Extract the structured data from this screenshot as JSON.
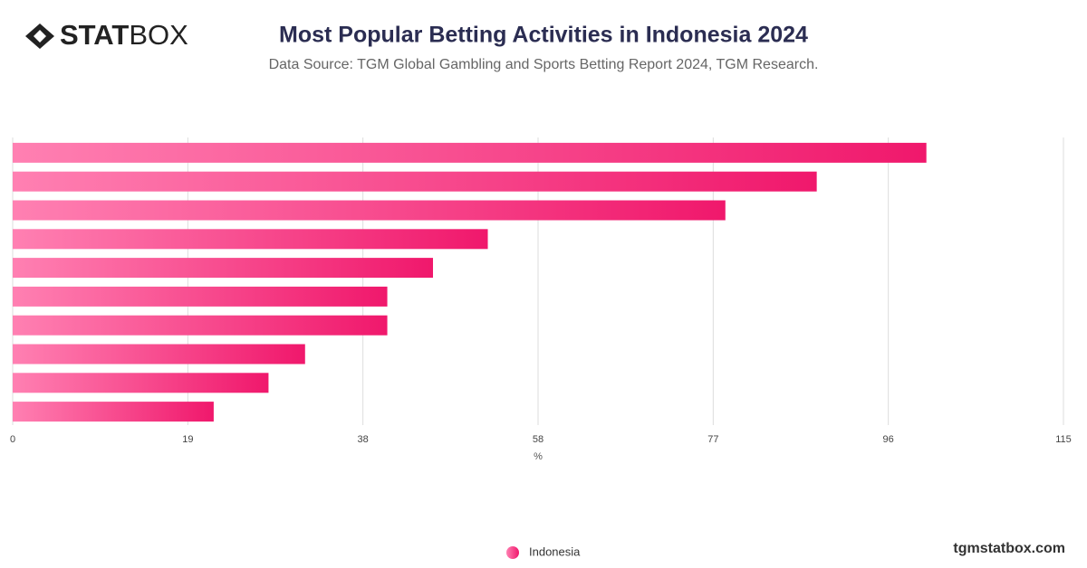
{
  "logo": {
    "bold": "STAT",
    "light": "BOX"
  },
  "footer": "tgmstatbox.com",
  "chart_data": {
    "type": "bar",
    "orientation": "horizontal",
    "title": "Most Popular Betting Activities in Indonesia 2024",
    "subtitle": "Data Source: TGM Global Gambling and Sports Betting Report 2024, TGM Research.",
    "x_label": "%",
    "categories": [
      null,
      null,
      null,
      null,
      null,
      null,
      null,
      null,
      null,
      null
    ],
    "series": [
      {
        "name": "Indonesia",
        "color": "#f0186c",
        "values": [
          100,
          88,
          78,
          52,
          46,
          41,
          41,
          32,
          28,
          22
        ]
      }
    ],
    "xlim": [
      0,
      115
    ],
    "xticks": [
      0,
      {
        "value": 19.17,
        "label": "19"
      },
      {
        "value": 38.33,
        "label": "38"
      },
      {
        "value": 57.5,
        "label": "58"
      },
      {
        "value": 76.67,
        "label": "77"
      },
      {
        "value": 95.83,
        "label": "96"
      },
      115
    ],
    "grid": true,
    "legend": "bottom"
  }
}
